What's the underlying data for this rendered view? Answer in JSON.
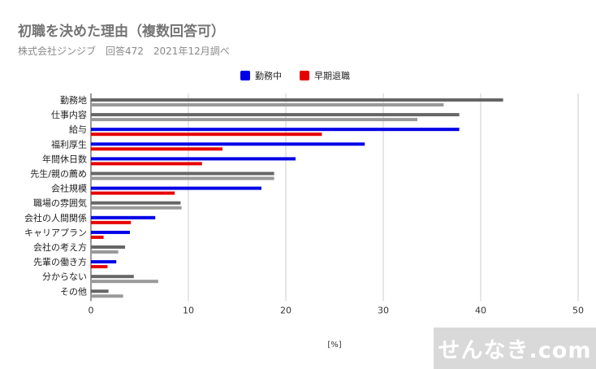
{
  "title": "初職を決めた理由（複数回答可）",
  "subtitle": "株式会社ジンジブ　回答472　2021年12月調べ",
  "legend": [
    {
      "label": "勤務中",
      "color": "#0000e6"
    },
    {
      "label": "早期退職",
      "color": "#e60000"
    }
  ],
  "watermark": "せんなき.com",
  "chart_data": {
    "type": "bar",
    "orientation": "horizontal",
    "xlabel": "[%]",
    "xlim": [
      0,
      50
    ],
    "x_ticks": [
      0,
      10,
      20,
      30,
      40,
      50
    ],
    "grid": true,
    "categories": [
      "勤務地",
      "仕事内容",
      "給与",
      "福利厚生",
      "年間休日数",
      "先生/親の薦め",
      "会社規模",
      "職場の雰囲気",
      "会社の人間関係",
      "キャリアプラン",
      "会社の考え方",
      "先輩の働き方",
      "分からない",
      "その他"
    ],
    "series": [
      {
        "name": "勤務中",
        "values": [
          42.3,
          37.8,
          37.8,
          28.1,
          21.0,
          18.8,
          17.5,
          9.2,
          6.6,
          4.0,
          3.5,
          2.6,
          4.4,
          1.8
        ],
        "colors": [
          "#666666",
          "#666666",
          "#0000e6",
          "#0000e6",
          "#0000e6",
          "#666666",
          "#0000e6",
          "#666666",
          "#0000e6",
          "#0000e6",
          "#666666",
          "#0000e6",
          "#666666",
          "#666666"
        ]
      },
      {
        "name": "早期退職",
        "values": [
          36.2,
          33.5,
          23.7,
          13.5,
          11.4,
          18.8,
          8.6,
          9.3,
          4.1,
          1.3,
          2.8,
          1.7,
          6.9,
          3.3
        ],
        "colors": [
          "#999999",
          "#999999",
          "#e60000",
          "#e60000",
          "#e60000",
          "#999999",
          "#e60000",
          "#999999",
          "#e60000",
          "#e60000",
          "#999999",
          "#e60000",
          "#999999",
          "#999999"
        ]
      }
    ]
  }
}
